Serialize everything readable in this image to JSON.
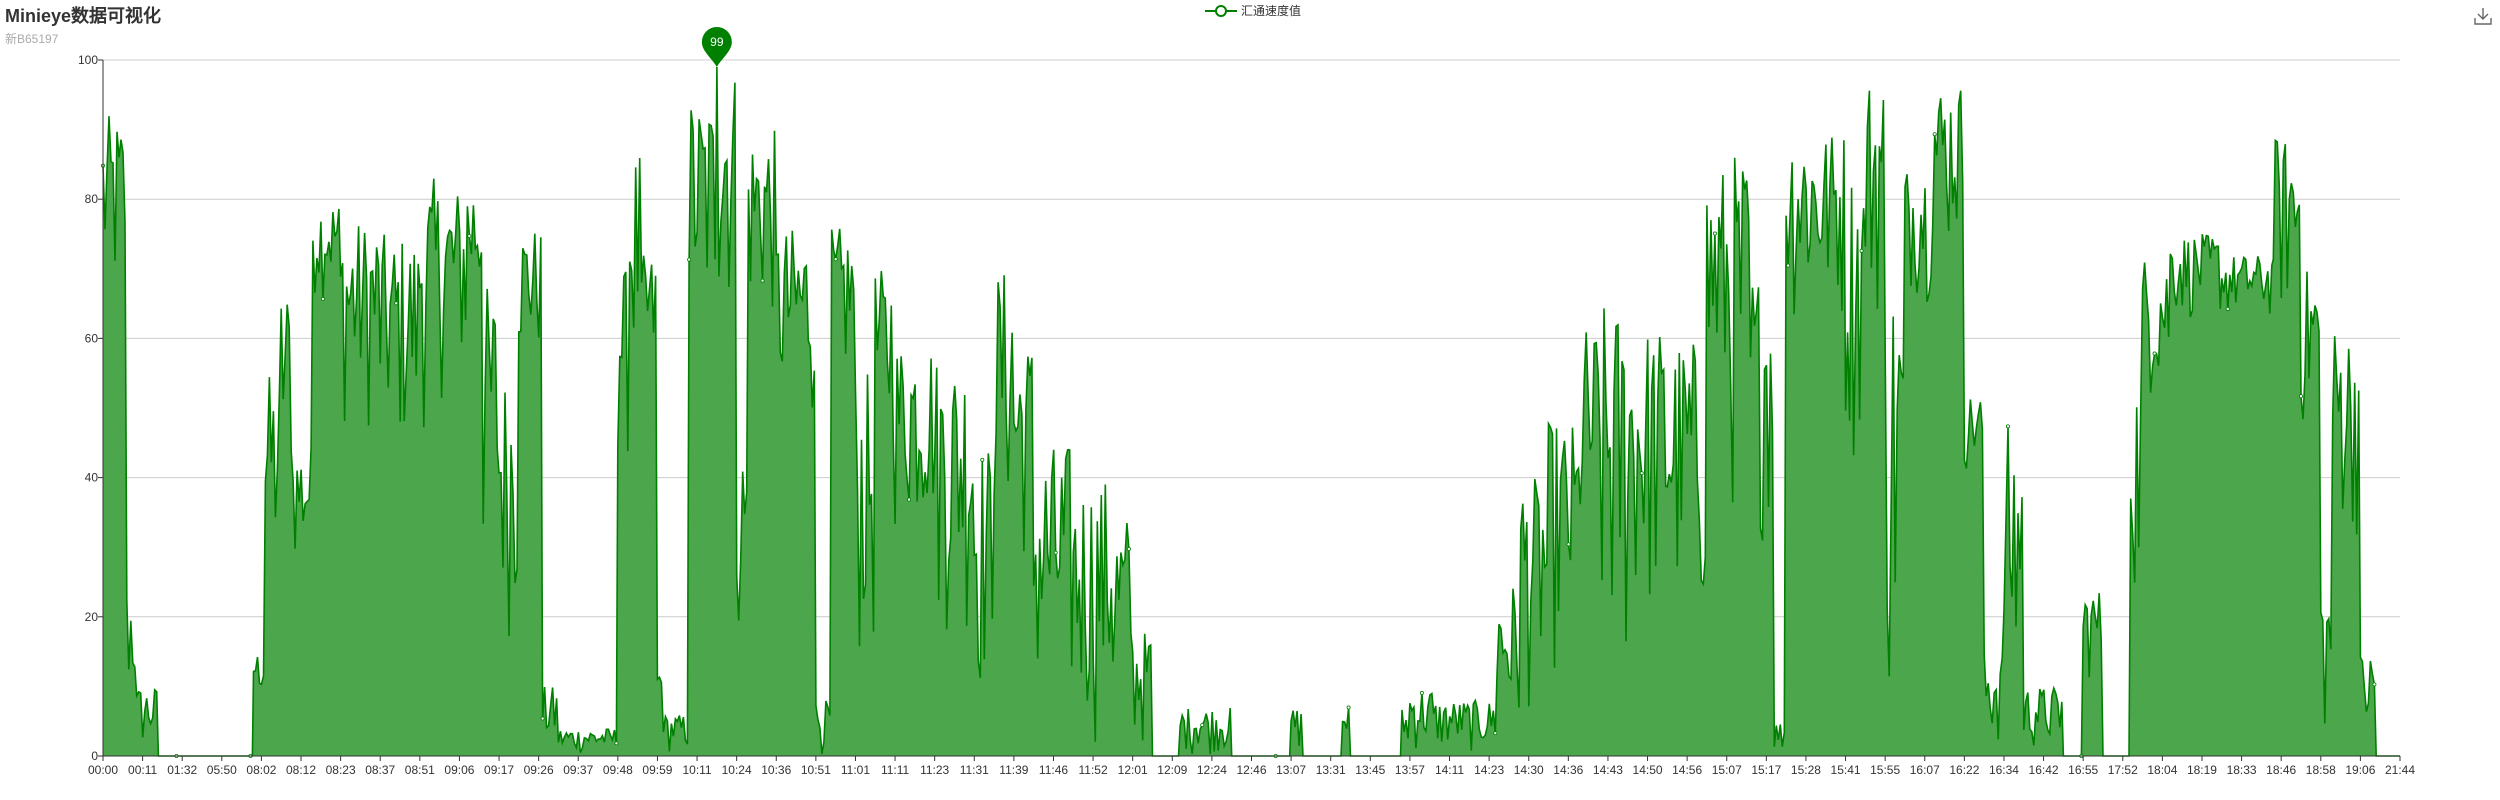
{
  "chart_data": {
    "type": "area",
    "title": "Minieye数据可视化",
    "subtitle": "新B65197",
    "legend": {
      "position": "top-center",
      "entries": [
        "汇通速度值"
      ]
    },
    "series": [
      {
        "name": "汇通速度值",
        "color": "#008000",
        "fill": "#4ca64c"
      }
    ],
    "ylim": [
      0,
      100
    ],
    "yticks": [
      0,
      20,
      40,
      60,
      80,
      100
    ],
    "grid": true,
    "xticks": [
      "00:00",
      "00:11",
      "01:32",
      "05:50",
      "08:02",
      "08:12",
      "08:23",
      "08:37",
      "08:51",
      "09:06",
      "09:17",
      "09:26",
      "09:37",
      "09:48",
      "09:59",
      "10:11",
      "10:24",
      "10:36",
      "10:51",
      "11:01",
      "11:11",
      "11:23",
      "11:31",
      "11:39",
      "11:46",
      "11:52",
      "12:01",
      "12:09",
      "12:24",
      "12:46",
      "13:07",
      "13:31",
      "13:45",
      "13:57",
      "14:11",
      "14:23",
      "14:30",
      "14:36",
      "14:43",
      "14:50",
      "14:56",
      "15:07",
      "15:17",
      "15:28",
      "15:41",
      "15:55",
      "16:07",
      "16:22",
      "16:34",
      "16:42",
      "16:55",
      "17:52",
      "18:04",
      "18:19",
      "18:33",
      "18:46",
      "18:58",
      "19:06",
      "21:44"
    ],
    "segments": [
      {
        "from": 0,
        "to": 0.6,
        "lo": 60,
        "hi": 92
      },
      {
        "from": 0.6,
        "to": 0.85,
        "lo": 5,
        "hi": 25
      },
      {
        "from": 0.85,
        "to": 1.4,
        "lo": 0,
        "hi": 10
      },
      {
        "from": 1.4,
        "to": 3.8,
        "lo": 0,
        "hi": 0
      },
      {
        "from": 3.8,
        "to": 4.1,
        "lo": 8,
        "hi": 15
      },
      {
        "from": 4.1,
        "to": 4.5,
        "lo": 20,
        "hi": 55
      },
      {
        "from": 4.5,
        "to": 4.8,
        "lo": 35,
        "hi": 68
      },
      {
        "from": 4.8,
        "to": 5.3,
        "lo": 25,
        "hi": 45
      },
      {
        "from": 5.3,
        "to": 6.0,
        "lo": 65,
        "hi": 80
      },
      {
        "from": 6.0,
        "to": 7.0,
        "lo": 45,
        "hi": 77
      },
      {
        "from": 7.0,
        "to": 8.0,
        "lo": 40,
        "hi": 75
      },
      {
        "from": 8.0,
        "to": 8.5,
        "lo": 45,
        "hi": 83
      },
      {
        "from": 8.5,
        "to": 9.2,
        "lo": 50,
        "hi": 82
      },
      {
        "from": 9.2,
        "to": 9.6,
        "lo": 60,
        "hi": 84
      },
      {
        "from": 9.6,
        "to": 10.0,
        "lo": 20,
        "hi": 68
      },
      {
        "from": 10.0,
        "to": 10.5,
        "lo": 15,
        "hi": 55
      },
      {
        "from": 10.5,
        "to": 11.1,
        "lo": 55,
        "hi": 76
      },
      {
        "from": 11.1,
        "to": 11.5,
        "lo": 0,
        "hi": 10
      },
      {
        "from": 11.5,
        "to": 13.0,
        "lo": 0,
        "hi": 4
      },
      {
        "from": 13.0,
        "to": 13.3,
        "lo": 40,
        "hi": 70
      },
      {
        "from": 13.3,
        "to": 13.6,
        "lo": 48,
        "hi": 87
      },
      {
        "from": 13.6,
        "to": 14.0,
        "lo": 50,
        "hi": 72
      },
      {
        "from": 14.0,
        "to": 14.2,
        "lo": 0,
        "hi": 15
      },
      {
        "from": 14.2,
        "to": 14.8,
        "lo": 0,
        "hi": 6
      },
      {
        "from": 14.8,
        "to": 15.5,
        "lo": 55,
        "hi": 95
      },
      {
        "from": 15.5,
        "to": 16.0,
        "lo": 60,
        "hi": 99
      },
      {
        "from": 16.0,
        "to": 16.3,
        "lo": 15,
        "hi": 45
      },
      {
        "from": 16.3,
        "to": 17.0,
        "lo": 60,
        "hi": 90
      },
      {
        "from": 17.0,
        "to": 18.0,
        "lo": 45,
        "hi": 76
      },
      {
        "from": 18.0,
        "to": 18.4,
        "lo": 0,
        "hi": 8
      },
      {
        "from": 18.4,
        "to": 19.0,
        "lo": 50,
        "hi": 76
      },
      {
        "from": 19.0,
        "to": 19.5,
        "lo": 10,
        "hi": 55
      },
      {
        "from": 19.5,
        "to": 20.0,
        "lo": 40,
        "hi": 70
      },
      {
        "from": 20.0,
        "to": 21.0,
        "lo": 30,
        "hi": 60
      },
      {
        "from": 21.0,
        "to": 22.0,
        "lo": 15,
        "hi": 58
      },
      {
        "from": 22.0,
        "to": 22.5,
        "lo": 5,
        "hi": 45
      },
      {
        "from": 22.5,
        "to": 23.0,
        "lo": 30,
        "hi": 70
      },
      {
        "from": 23.0,
        "to": 23.5,
        "lo": 25,
        "hi": 60
      },
      {
        "from": 23.5,
        "to": 24.5,
        "lo": 0,
        "hi": 45
      },
      {
        "from": 24.5,
        "to": 25.5,
        "lo": 0,
        "hi": 40
      },
      {
        "from": 25.5,
        "to": 26.0,
        "lo": 0,
        "hi": 35
      },
      {
        "from": 26.0,
        "to": 26.5,
        "lo": 0,
        "hi": 18
      },
      {
        "from": 26.5,
        "to": 27.2,
        "lo": 0,
        "hi": 0
      },
      {
        "from": 27.2,
        "to": 28.5,
        "lo": 0,
        "hi": 7
      },
      {
        "from": 28.5,
        "to": 30.0,
        "lo": 0,
        "hi": 0
      },
      {
        "from": 30.0,
        "to": 30.3,
        "lo": 0,
        "hi": 7
      },
      {
        "from": 30.3,
        "to": 31.3,
        "lo": 0,
        "hi": 0
      },
      {
        "from": 31.3,
        "to": 31.5,
        "lo": 0,
        "hi": 8
      },
      {
        "from": 31.5,
        "to": 32.8,
        "lo": 0,
        "hi": 0
      },
      {
        "from": 32.8,
        "to": 33.0,
        "lo": 0,
        "hi": 7
      },
      {
        "from": 33.0,
        "to": 33.6,
        "lo": 0,
        "hi": 10
      },
      {
        "from": 33.6,
        "to": 34.5,
        "lo": 0,
        "hi": 8
      },
      {
        "from": 34.5,
        "to": 35.2,
        "lo": 0,
        "hi": 8
      },
      {
        "from": 35.2,
        "to": 35.8,
        "lo": 0,
        "hi": 25
      },
      {
        "from": 35.8,
        "to": 36.5,
        "lo": 5,
        "hi": 40
      },
      {
        "from": 36.5,
        "to": 37.3,
        "lo": 10,
        "hi": 48
      },
      {
        "from": 37.3,
        "to": 37.8,
        "lo": 20,
        "hi": 62
      },
      {
        "from": 37.8,
        "to": 38.5,
        "lo": 5,
        "hi": 65
      },
      {
        "from": 38.5,
        "to": 39.5,
        "lo": 15,
        "hi": 62
      },
      {
        "from": 39.5,
        "to": 40.5,
        "lo": 15,
        "hi": 60
      },
      {
        "from": 40.5,
        "to": 41.0,
        "lo": 40,
        "hi": 85
      },
      {
        "from": 41.0,
        "to": 41.6,
        "lo": 30,
        "hi": 87
      },
      {
        "from": 41.6,
        "to": 42.2,
        "lo": 30,
        "hi": 70
      },
      {
        "from": 42.2,
        "to": 42.5,
        "lo": 0,
        "hi": 5
      },
      {
        "from": 42.5,
        "to": 43.2,
        "lo": 60,
        "hi": 91
      },
      {
        "from": 43.2,
        "to": 44.0,
        "lo": 60,
        "hi": 90
      },
      {
        "from": 44.0,
        "to": 44.5,
        "lo": 40,
        "hi": 85
      },
      {
        "from": 44.5,
        "to": 45.0,
        "lo": 60,
        "hi": 98
      },
      {
        "from": 45.0,
        "to": 45.5,
        "lo": 0,
        "hi": 70
      },
      {
        "from": 45.5,
        "to": 46.2,
        "lo": 65,
        "hi": 85
      },
      {
        "from": 46.2,
        "to": 47.0,
        "lo": 70,
        "hi": 97
      },
      {
        "from": 47.0,
        "to": 47.5,
        "lo": 40,
        "hi": 52
      },
      {
        "from": 47.5,
        "to": 48.0,
        "lo": 0,
        "hi": 15
      },
      {
        "from": 48.0,
        "to": 48.5,
        "lo": 0,
        "hi": 48
      },
      {
        "from": 48.5,
        "to": 49.5,
        "lo": 0,
        "hi": 10
      },
      {
        "from": 49.5,
        "to": 50.0,
        "lo": 0,
        "hi": 0
      },
      {
        "from": 50.0,
        "to": 50.5,
        "lo": 10,
        "hi": 24
      },
      {
        "from": 50.5,
        "to": 51.2,
        "lo": 0,
        "hi": 0
      },
      {
        "from": 51.2,
        "to": 51.5,
        "lo": 20,
        "hi": 55
      },
      {
        "from": 51.5,
        "to": 52.2,
        "lo": 50,
        "hi": 72
      },
      {
        "from": 52.2,
        "to": 53.5,
        "lo": 62,
        "hi": 75
      },
      {
        "from": 53.5,
        "to": 54.8,
        "lo": 62,
        "hi": 72
      },
      {
        "from": 54.8,
        "to": 55.5,
        "lo": 60,
        "hi": 89
      },
      {
        "from": 55.5,
        "to": 56.0,
        "lo": 45,
        "hi": 70
      },
      {
        "from": 56.0,
        "to": 56.3,
        "lo": 0,
        "hi": 25
      },
      {
        "from": 56.3,
        "to": 57.0,
        "lo": 30,
        "hi": 62
      },
      {
        "from": 57.0,
        "to": 57.4,
        "lo": 0,
        "hi": 15
      },
      {
        "from": 57.4,
        "to": 58.0,
        "lo": 0,
        "hi": 0
      }
    ],
    "peak": {
      "label": "99",
      "value": 99,
      "position": 15.5
    }
  }
}
